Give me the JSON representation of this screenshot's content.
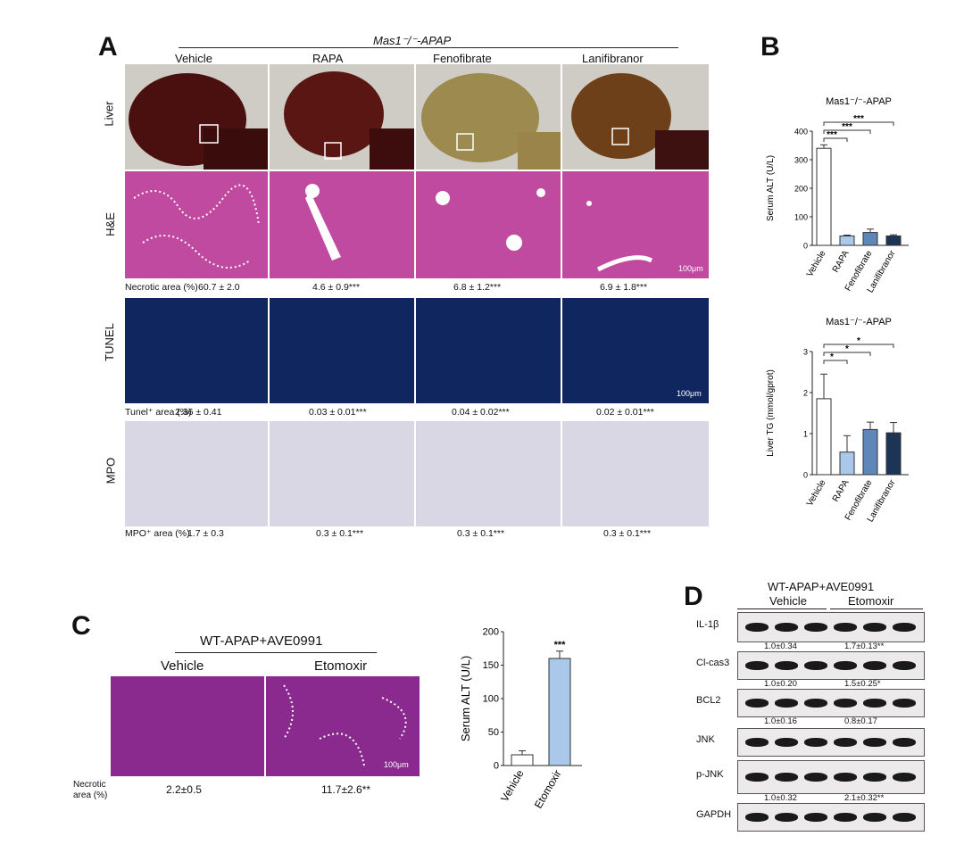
{
  "panelA": {
    "letter": "A",
    "header": "Mas1⁻/⁻-APAP",
    "columns": [
      "Vehicle",
      "RAPA",
      "Fenofibrate",
      "Lanifibranor"
    ],
    "rows": [
      "Liver",
      "H&E",
      "TUNEL",
      "MPO"
    ],
    "scale_he": "100μm",
    "scale_tunel": "100μm",
    "necrotic": {
      "label": "Necrotic area (%)",
      "values": [
        "60.7 ± 2.0",
        "4.6 ± 0.9***",
        "6.8 ± 1.2***",
        "6.9 ± 1.8***"
      ]
    },
    "tunel_area": {
      "label": "Tunel⁺ area (%)",
      "values": [
        "2.36 ± 0.41",
        "0.03 ± 0.01***",
        "0.04 ± 0.02***",
        "0.02 ± 0.01***"
      ]
    },
    "mpo_area": {
      "label": "MPO⁺ area (%)",
      "values": [
        "1.7 ± 0.3",
        "0.3 ± 0.1***",
        "0.3 ± 0.1***",
        "0.3 ± 0.1***"
      ]
    }
  },
  "panelB": {
    "letter": "B"
  },
  "panelC": {
    "letter": "C",
    "header": "WT-APAP+AVE0991",
    "columns": [
      "Vehicle",
      "Etomoxir"
    ],
    "scale": "100μm",
    "necrotic_label_1": "Necrotic",
    "necrotic_label_2": "area (%)",
    "necrotic_values": [
      "2.2±0.5",
      "11.7±2.6**"
    ]
  },
  "panelD": {
    "letter": "D",
    "header": "WT-APAP+AVE0991",
    "groups": [
      "Vehicle",
      "Etomoxir"
    ],
    "blots": [
      {
        "name": "IL-1β",
        "quant": [
          "1.0±0.34",
          "1.7±0.13**"
        ]
      },
      {
        "name": "Cl-cas3",
        "quant": [
          "1.0±0.20",
          "1.5±0.25*"
        ]
      },
      {
        "name": "BCL2",
        "quant": [
          "1.0±0.16",
          "0.8±0.17"
        ]
      },
      {
        "name": "JNK",
        "quant": [
          "",
          ""
        ]
      },
      {
        "name": "p-JNK",
        "quant": [
          "1.0±0.32",
          "2.1±0.32**"
        ]
      },
      {
        "name": "GAPDH",
        "quant": [
          "",
          ""
        ]
      }
    ]
  },
  "chart_data": [
    {
      "type": "bar",
      "title": "Mas1⁻/⁻-APAP",
      "ylabel": "Serum ALT (U/L)",
      "categories": [
        "Vehicle",
        "RAPA",
        "Fenofibrate",
        "Lanifibranor"
      ],
      "values": [
        340,
        33,
        45,
        33
      ],
      "errors": [
        12,
        3,
        12,
        4
      ],
      "ylim": [
        0,
        400
      ],
      "yticks": [
        0,
        100,
        200,
        300,
        400
      ],
      "significance": [
        "***",
        "***",
        "***"
      ],
      "colors": [
        "#ffffff",
        "#a9c8ea",
        "#5f86b8",
        "#1c3557"
      ]
    },
    {
      "type": "bar",
      "title": "Mas1⁻/⁻-APAP",
      "ylabel": "Liver TG (mmol/gprot)",
      "categories": [
        "Vehicle",
        "RAPA",
        "Fenofibrate",
        "Lanifibranor"
      ],
      "values": [
        1.85,
        0.55,
        1.1,
        1.02
      ],
      "errors": [
        0.6,
        0.4,
        0.18,
        0.25
      ],
      "ylim": [
        0,
        3
      ],
      "yticks": [
        0,
        1,
        2,
        3
      ],
      "significance": [
        "*",
        "*",
        "*"
      ],
      "colors": [
        "#ffffff",
        "#a9c8ea",
        "#5f86b8",
        "#1c3557"
      ]
    },
    {
      "type": "bar",
      "title": "",
      "ylabel": "Serum ALT (U/L)",
      "categories": [
        "Vehicle",
        "Etomoxir"
      ],
      "values": [
        16,
        160
      ],
      "errors": [
        6,
        11
      ],
      "ylim": [
        0,
        200
      ],
      "yticks": [
        0,
        50,
        100,
        150,
        200
      ],
      "significance": [
        "",
        "***"
      ],
      "colors": [
        "#ffffff",
        "#a9c8ea"
      ]
    }
  ]
}
